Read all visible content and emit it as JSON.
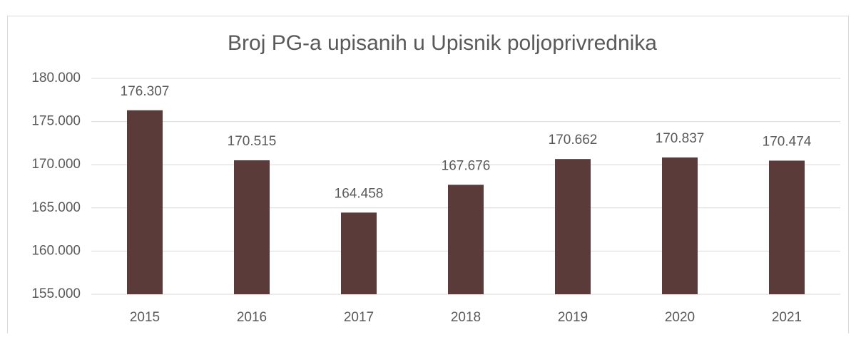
{
  "chart_data": {
    "type": "bar",
    "title": "Broj PG-a upisanih u Upisnik poljoprivrednika",
    "categories": [
      "2015",
      "2016",
      "2017",
      "2018",
      "2019",
      "2020",
      "2021"
    ],
    "values": [
      176307,
      170515,
      164458,
      167676,
      170662,
      170837,
      170474
    ],
    "value_labels": [
      "176.307",
      "170.515",
      "164.458",
      "167.676",
      "170.662",
      "170.837",
      "170.474"
    ],
    "color": "#5b3a3a",
    "ylim": [
      155000,
      180000
    ],
    "yticks": [
      {
        "value": 155000,
        "label": "155.000"
      },
      {
        "value": 160000,
        "label": "160.000"
      },
      {
        "value": 165000,
        "label": "165.000"
      },
      {
        "value": 170000,
        "label": "170.000"
      },
      {
        "value": 175000,
        "label": "175.000"
      },
      {
        "value": 180000,
        "label": "180.000"
      }
    ],
    "grid": true
  }
}
